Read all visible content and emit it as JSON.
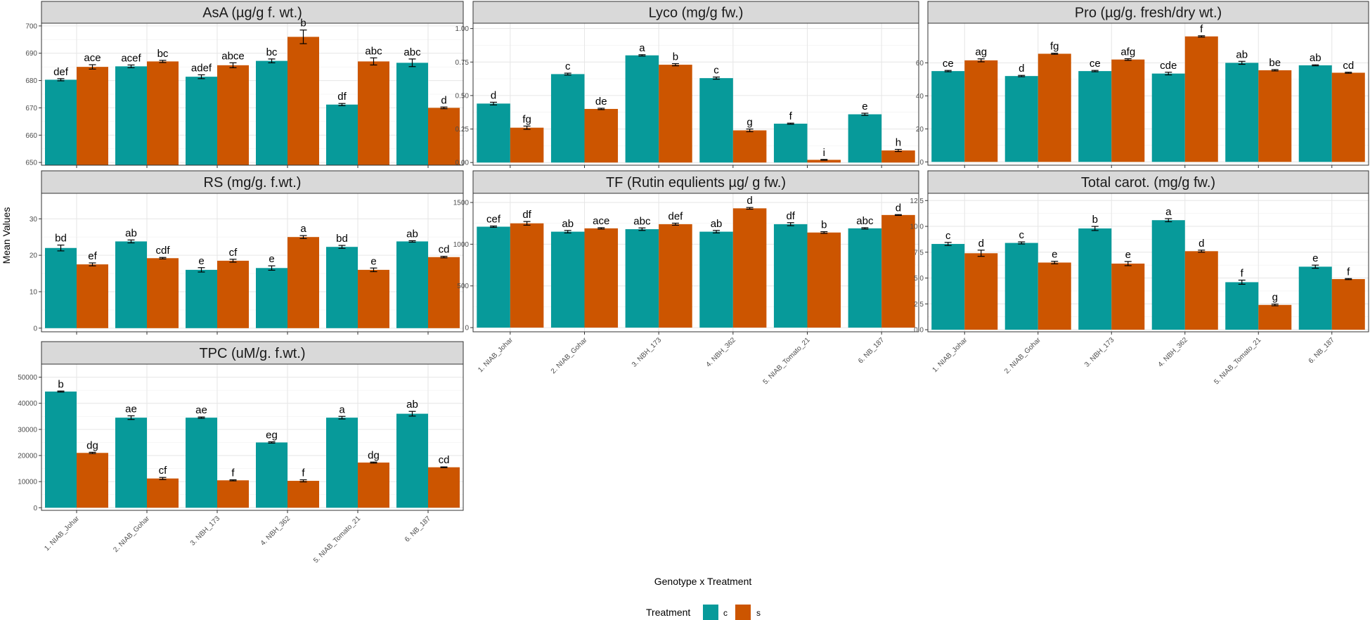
{
  "chart_data": {
    "type": "bar",
    "xlabel": "Genotype x Treatment",
    "ylabel": "Mean Values",
    "legend": {
      "title": "Treatment",
      "placement": "bottom",
      "entries": [
        {
          "label": "c",
          "color": "#079a9a"
        },
        {
          "label": "s",
          "color": "#cc5500"
        }
      ]
    },
    "categories": [
      "1. NIAB_Johar",
      "2. NIAB_Gohar",
      "3. NBH_173",
      "4. NBH_362",
      "5. NIAB_Tomato_21",
      "6. NB_187"
    ],
    "panels": [
      {
        "title": "AsA (µg/g f. wt.)",
        "ylim": [
          649,
          701
        ],
        "yticks": [
          650,
          660,
          670,
          680,
          690,
          700
        ],
        "yticklabels": [
          "650",
          "660",
          "670",
          "680",
          "690",
          "700"
        ],
        "series": [
          {
            "name": "c",
            "values": [
              680.3,
              685.2,
              681.4,
              687.2,
              671.2,
              686.5
            ],
            "errors": [
              0.4,
              0.5,
              0.7,
              0.7,
              0.4,
              1.4
            ],
            "labels": [
              "def",
              "acef",
              "adef",
              "bc",
              "df",
              "abc"
            ]
          },
          {
            "name": "s",
            "values": [
              685.0,
              687.0,
              685.6,
              696.0,
              687.0,
              670.0
            ],
            "errors": [
              0.8,
              0.4,
              0.9,
              2.5,
              1.3,
              0.3
            ],
            "labels": [
              "ace",
              "bc",
              "abce",
              "b",
              "abc",
              "d"
            ]
          }
        ]
      },
      {
        "title": "Lyco (mg/g fw.)",
        "ylim": [
          -0.02,
          1.04
        ],
        "yticks": [
          0,
          0.25,
          0.5,
          0.75,
          1.0
        ],
        "yticklabels": [
          "0.00",
          "0.25",
          "0.50",
          "0.75",
          "1.00"
        ],
        "series": [
          {
            "name": "c",
            "values": [
              0.44,
              0.66,
              0.8,
              0.63,
              0.29,
              0.36
            ],
            "errors": [
              0.01,
              0.007,
              0.005,
              0.008,
              0.004,
              0.008
            ],
            "labels": [
              "d",
              "c",
              "a",
              "c",
              "f",
              "e"
            ]
          },
          {
            "name": "s",
            "values": [
              0.26,
              0.4,
              0.73,
              0.24,
              0.02,
              0.09
            ],
            "errors": [
              0.012,
              0.005,
              0.008,
              0.01,
              0.003,
              0.008
            ],
            "labels": [
              "fg",
              "de",
              "b",
              "g",
              "i",
              "h"
            ]
          }
        ]
      },
      {
        "title": "Pro (µg/g. fresh/dry wt.)",
        "ylim": [
          -2,
          84
        ],
        "yticks": [
          0,
          20,
          40,
          60
        ],
        "yticklabels": [
          "0",
          "20",
          "40",
          "60"
        ],
        "series": [
          {
            "name": "c",
            "values": [
              55,
              52,
              55,
              53.5,
              60,
              58.5
            ],
            "errors": [
              0.4,
              0.4,
              0.4,
              0.8,
              0.9,
              0.3
            ],
            "labels": [
              "ce",
              "d",
              "ce",
              "cde",
              "ab",
              "ab"
            ]
          },
          {
            "name": "s",
            "values": [
              61.5,
              65.5,
              62,
              76,
              55.5,
              54
            ],
            "errors": [
              0.9,
              0.3,
              0.5,
              0.4,
              0.4,
              0.3
            ],
            "labels": [
              "ag",
              "fg",
              "afg",
              "f",
              "be",
              "cd"
            ]
          }
        ]
      },
      {
        "title": "RS (mg/g. f.wt.)",
        "ylim": [
          -1,
          37
        ],
        "yticks": [
          0,
          10,
          20,
          30
        ],
        "yticklabels": [
          "0",
          "10",
          "20",
          "30"
        ],
        "series": [
          {
            "name": "c",
            "values": [
              22,
              23.8,
              16,
              16.5,
              22.3,
              23.8
            ],
            "errors": [
              0.8,
              0.4,
              0.6,
              0.6,
              0.4,
              0.2
            ],
            "labels": [
              "bd",
              "ab",
              "e",
              "e",
              "bd",
              "ab"
            ]
          },
          {
            "name": "s",
            "values": [
              17.5,
              19.2,
              18.5,
              25,
              16,
              19.5
            ],
            "errors": [
              0.4,
              0.2,
              0.4,
              0.4,
              0.5,
              0.2
            ],
            "labels": [
              "ef",
              "cdf",
              "cf",
              "a",
              "e",
              "cd"
            ]
          }
        ]
      },
      {
        "title": "TF (Rutin equlients µg/ g fw.)",
        "ylim": [
          -50,
          1610
        ],
        "yticks": [
          0,
          500,
          1000,
          1500
        ],
        "yticklabels": [
          "0",
          "500",
          "1000",
          "1500"
        ],
        "series": [
          {
            "name": "c",
            "values": [
              1210,
              1150,
              1180,
              1150,
              1240,
              1190
            ],
            "errors": [
              8,
              15,
              15,
              15,
              18,
              8
            ],
            "labels": [
              "cef",
              "ab",
              "abc",
              "ab",
              "df",
              "abc"
            ]
          },
          {
            "name": "s",
            "values": [
              1250,
              1190,
              1240,
              1430,
              1140,
              1350
            ],
            "errors": [
              22,
              8,
              12,
              10,
              10,
              5
            ],
            "labels": [
              "df",
              "ace",
              "def",
              "d",
              "b",
              "d"
            ]
          }
        ]
      },
      {
        "title": "Total carot. (mg/g fw.)",
        "ylim": [
          -0.2,
          13.2
        ],
        "yticks": [
          0,
          2.5,
          5,
          7.5,
          10,
          12.5
        ],
        "yticklabels": [
          "0.0",
          "2.5",
          "5.0",
          "7.5",
          "10.0",
          "12.5"
        ],
        "series": [
          {
            "name": "c",
            "values": [
              8.3,
              8.4,
              9.8,
              10.6,
              4.6,
              6.1
            ],
            "errors": [
              0.15,
              0.1,
              0.2,
              0.15,
              0.2,
              0.15
            ],
            "labels": [
              "c",
              "c",
              "b",
              "a",
              "f",
              "e"
            ]
          },
          {
            "name": "s",
            "values": [
              7.4,
              6.5,
              6.4,
              7.6,
              2.4,
              4.9
            ],
            "errors": [
              0.3,
              0.12,
              0.2,
              0.1,
              0.08,
              0.05
            ],
            "labels": [
              "d",
              "e",
              "e",
              "d",
              "g",
              "f"
            ]
          }
        ]
      },
      {
        "title": "TPC (uM/g. f.wt.)",
        "ylim": [
          -1000,
          55000
        ],
        "yticks": [
          0,
          10000,
          20000,
          30000,
          40000,
          50000
        ],
        "yticklabels": [
          "0",
          "10000",
          "20000",
          "30000",
          "40000",
          "50000"
        ],
        "series": [
          {
            "name": "c",
            "values": [
              44500,
              34500,
              34500,
              25000,
              34500,
              36000
            ],
            "errors": [
              200,
              700,
              250,
              250,
              500,
              900
            ],
            "labels": [
              "b",
              "ae",
              "ae",
              "eg",
              "a",
              "ab"
            ]
          },
          {
            "name": "s",
            "values": [
              21000,
              11200,
              10500,
              10300,
              17300,
              15500
            ],
            "errors": [
              250,
              400,
              200,
              400,
              200,
              150
            ],
            "labels": [
              "dg",
              "cf",
              "f",
              "f",
              "dg",
              "cd"
            ]
          }
        ]
      }
    ]
  }
}
